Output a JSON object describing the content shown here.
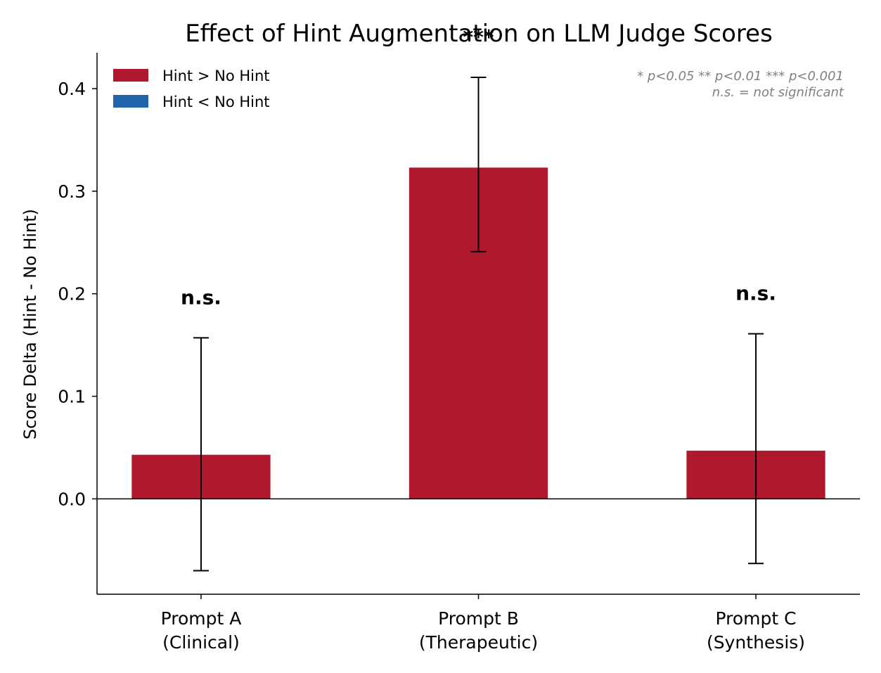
{
  "chart_data": {
    "type": "bar",
    "title": "Effect of Hint Augmentation on LLM Judge Scores",
    "ylabel": "Score Delta (Hint - No Hint)",
    "xlabel": "",
    "categories": [
      [
        "Prompt A",
        "(Clinical)"
      ],
      [
        "Prompt B",
        "(Therapeutic)"
      ],
      [
        "Prompt C",
        "(Synthesis)"
      ]
    ],
    "values": [
      0.043,
      0.323,
      0.047
    ],
    "error_low": [
      -0.07,
      0.241,
      -0.063
    ],
    "error_high": [
      0.157,
      0.411,
      0.161
    ],
    "significance": [
      "n.s.",
      "***",
      "n.s."
    ],
    "ylim": [
      -0.093,
      0.435
    ],
    "yticks": [
      0.0,
      0.1,
      0.2,
      0.3,
      0.4
    ],
    "ytick_labels": [
      "0.0",
      "0.1",
      "0.2",
      "0.3",
      "0.4"
    ],
    "legend": [
      {
        "label": "Hint > No Hint",
        "color": "#b0182d"
      },
      {
        "label": "Hint < No Hint",
        "color": "#2166ac"
      }
    ],
    "legend_position": "top-left",
    "notes": [
      "* p<0.05  ** p<0.01  *** p<0.001",
      "n.s. = not significant"
    ],
    "grid": false,
    "positive_color": "#b0182d",
    "negative_color": "#2166ac"
  }
}
